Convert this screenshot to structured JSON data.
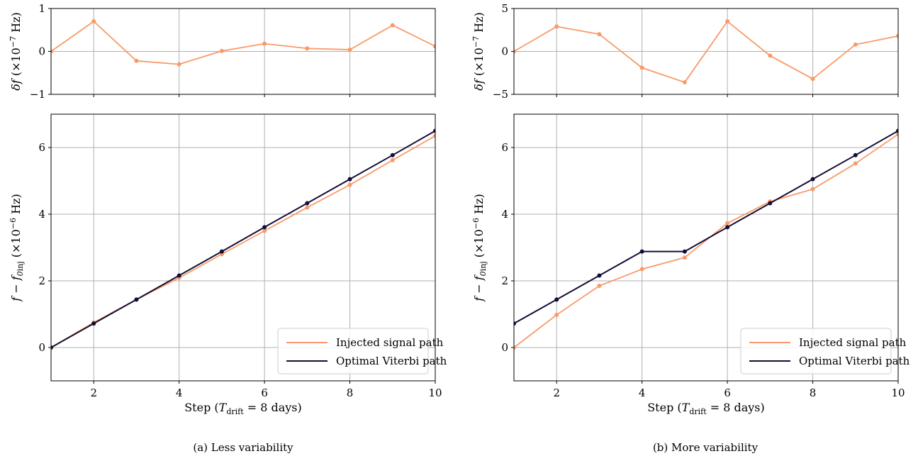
{
  "colors": {
    "injected": "#f89a69",
    "viterbi": "#140e36",
    "grid": "#b0b0b0",
    "axis": "#000000"
  },
  "chart_data": [
    {
      "id": "a-top",
      "type": "line",
      "xlim": [
        1,
        10
      ],
      "ylim": [
        -1,
        1
      ],
      "yticks": [
        -1,
        0,
        1
      ],
      "ytick_labels": [
        "−1",
        "0",
        "1"
      ],
      "xticks": [
        2,
        4,
        6,
        8,
        10
      ],
      "show_xtick_labels": false,
      "ylabel": "δf (×10⁻⁷ Hz)",
      "grid": true,
      "series": [
        {
          "key": "injected",
          "x": [
            1,
            2,
            3,
            4,
            5,
            6,
            7,
            8,
            9,
            10
          ],
          "values": [
            0,
            0.7,
            -0.22,
            -0.3,
            0.01,
            0.18,
            0.07,
            0.04,
            0.61,
            0.12
          ]
        }
      ]
    },
    {
      "id": "a-bottom",
      "type": "line",
      "xlim": [
        1,
        10
      ],
      "ylim": [
        -1,
        7
      ],
      "yticks": [
        0,
        2,
        4,
        6
      ],
      "ytick_labels": [
        "0",
        "2",
        "4",
        "6"
      ],
      "xticks": [
        2,
        4,
        6,
        8,
        10
      ],
      "xtick_labels": [
        "2",
        "4",
        "6",
        "8",
        "10"
      ],
      "show_xtick_labels": true,
      "xlabel": "Step (Tₑₒₗₒₒ = 8 days)",
      "ylabel": "f − f₀ᵢₙⱼ (×10⁻⁶ Hz)",
      "grid": true,
      "legend": {
        "placement": "lower-right",
        "entries": [
          "Injected signal path",
          "Optimal Viterbi path"
        ]
      },
      "series": [
        {
          "name": "Injected signal path",
          "key": "injected",
          "x": [
            1,
            2,
            3,
            4,
            5,
            6,
            7,
            8,
            9,
            10
          ],
          "values": [
            0,
            0.75,
            1.44,
            2.09,
            2.8,
            3.5,
            4.2,
            4.88,
            5.62,
            6.35
          ]
        },
        {
          "name": "Optimal Viterbi path",
          "key": "viterbi",
          "x": [
            1,
            2,
            3,
            4,
            5,
            6,
            7,
            8,
            9,
            10
          ],
          "values": [
            0,
            0.72,
            1.44,
            2.16,
            2.88,
            3.61,
            4.33,
            5.05,
            5.77,
            6.5
          ]
        }
      ]
    },
    {
      "id": "b-top",
      "type": "line",
      "xlim": [
        1,
        10
      ],
      "ylim": [
        -5,
        5
      ],
      "yticks": [
        -5,
        0,
        5
      ],
      "ytick_labels": [
        "−5",
        "0",
        "5"
      ],
      "xticks": [
        2,
        4,
        6,
        8,
        10
      ],
      "show_xtick_labels": false,
      "ylabel": "δf (×10⁻⁷ Hz)",
      "grid": true,
      "series": [
        {
          "key": "injected",
          "x": [
            1,
            2,
            3,
            4,
            5,
            6,
            7,
            8,
            9,
            10
          ],
          "values": [
            0,
            2.9,
            2.0,
            -1.9,
            -3.6,
            3.5,
            -0.5,
            -3.2,
            0.8,
            1.8
          ]
        }
      ]
    },
    {
      "id": "b-bottom",
      "type": "line",
      "xlim": [
        1,
        10
      ],
      "ylim": [
        -1,
        7
      ],
      "yticks": [
        0,
        2,
        4,
        6
      ],
      "ytick_labels": [
        "0",
        "2",
        "4",
        "6"
      ],
      "xticks": [
        2,
        4,
        6,
        8,
        10
      ],
      "xtick_labels": [
        "2",
        "4",
        "6",
        "8",
        "10"
      ],
      "show_xtick_labels": true,
      "xlabel": "Step (Tₑₒₗₒₒ = 8 days)",
      "ylabel": "f − f₀ᵢₙⱼ (×10⁻⁶ Hz)",
      "grid": true,
      "legend": {
        "placement": "lower-right",
        "entries": [
          "Injected signal path",
          "Optimal Viterbi path"
        ]
      },
      "series": [
        {
          "name": "Injected signal path",
          "key": "injected",
          "x": [
            1,
            2,
            3,
            4,
            5,
            6,
            7,
            8,
            9,
            10
          ],
          "values": [
            0,
            0.98,
            1.85,
            2.35,
            2.7,
            3.73,
            4.38,
            4.75,
            5.52,
            6.4
          ]
        },
        {
          "name": "Optimal Viterbi path",
          "key": "viterbi",
          "x": [
            1,
            2,
            3,
            4,
            5,
            6,
            7,
            8,
            9,
            10
          ],
          "values": [
            0.72,
            1.44,
            2.16,
            2.88,
            2.88,
            3.61,
            4.33,
            5.05,
            5.77,
            6.5
          ]
        }
      ]
    }
  ],
  "captions": {
    "a": "(a) Less variability",
    "b": "(b) More variability"
  }
}
